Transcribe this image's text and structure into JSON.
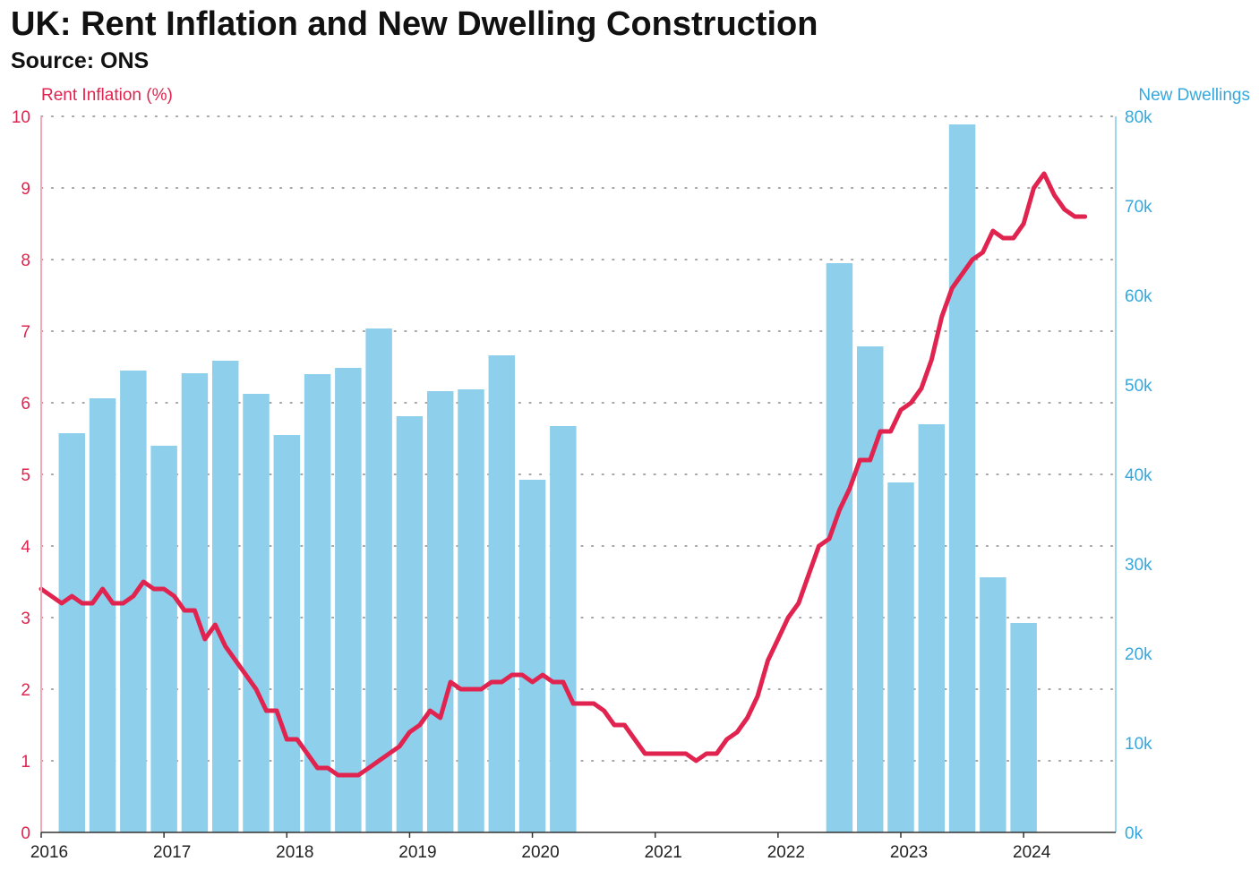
{
  "header": {
    "title": "UK: Rent Inflation and New Dwelling Construction",
    "subtitle": "Source: ONS"
  },
  "colors": {
    "rent": "#e0244f",
    "dwellings": "#36a8dc",
    "bar_fill": "#8ecfeb",
    "grid": "#888888",
    "x_tick": "#222222"
  },
  "chart_data": {
    "type": "bar",
    "title": "UK: Rent Inflation and New Dwelling Construction",
    "subtitle": "Source: ONS",
    "y_left": {
      "label": "Rent Inflation (%)",
      "range": [
        0,
        10
      ],
      "ticks": [
        "0",
        "1",
        "2",
        "3",
        "4",
        "5",
        "6",
        "7",
        "8",
        "9",
        "10"
      ]
    },
    "y_right": {
      "label": "New Dwellings",
      "range": [
        0,
        80000
      ],
      "ticks": [
        "0k",
        "10k",
        "20k",
        "30k",
        "40k",
        "50k",
        "60k",
        "70k",
        "80k"
      ]
    },
    "x_axis": {
      "range": [
        2016,
        2024.75
      ],
      "ticks": [
        "2016",
        "2017",
        "2018",
        "2019",
        "2020",
        "2021",
        "2022",
        "2023",
        "2024"
      ]
    },
    "grid": "horizontal dotted",
    "series": [
      {
        "name": "New Dwellings",
        "type": "bar",
        "axis": "right",
        "x": [
          2016.25,
          2016.5,
          2016.75,
          2017.0,
          2017.25,
          2017.5,
          2017.75,
          2018.0,
          2018.25,
          2018.5,
          2018.75,
          2019.0,
          2019.25,
          2019.5,
          2019.75,
          2020.0,
          2020.25,
          2022.5,
          2022.75,
          2023.0,
          2023.25,
          2023.5,
          2023.75,
          2024.0
        ],
        "values": [
          44600,
          48500,
          51600,
          43200,
          51300,
          52700,
          49000,
          44400,
          51200,
          51900,
          56300,
          46500,
          49300,
          49500,
          53300,
          39400,
          45400,
          63600,
          54300,
          39100,
          45600,
          79100,
          28500,
          23400
        ]
      },
      {
        "name": "Rent Inflation (%)",
        "type": "line",
        "axis": "left",
        "x": [
          2016.0,
          2016.083,
          2016.167,
          2016.25,
          2016.333,
          2016.417,
          2016.5,
          2016.583,
          2016.667,
          2016.75,
          2016.833,
          2016.917,
          2017.0,
          2017.083,
          2017.167,
          2017.25,
          2017.333,
          2017.417,
          2017.5,
          2017.583,
          2017.667,
          2017.75,
          2017.833,
          2017.917,
          2018.0,
          2018.083,
          2018.167,
          2018.25,
          2018.333,
          2018.417,
          2018.5,
          2018.583,
          2018.667,
          2018.75,
          2018.833,
          2018.917,
          2019.0,
          2019.083,
          2019.167,
          2019.25,
          2019.333,
          2019.417,
          2019.5,
          2019.583,
          2019.667,
          2019.75,
          2019.833,
          2019.917,
          2020.0,
          2020.083,
          2020.167,
          2020.25,
          2020.333,
          2020.417,
          2020.5,
          2020.583,
          2020.667,
          2020.75,
          2020.833,
          2020.917,
          2021.0,
          2021.083,
          2021.167,
          2021.25,
          2021.333,
          2021.417,
          2021.5,
          2021.583,
          2021.667,
          2021.75,
          2021.833,
          2021.917,
          2022.0,
          2022.083,
          2022.167,
          2022.25,
          2022.333,
          2022.417,
          2022.5,
          2022.583,
          2022.667,
          2022.75,
          2022.833,
          2022.917,
          2023.0,
          2023.083,
          2023.167,
          2023.25,
          2023.333,
          2023.417,
          2023.5,
          2023.583,
          2023.667,
          2023.75,
          2023.833,
          2023.917,
          2024.0,
          2024.083,
          2024.167,
          2024.25,
          2024.333,
          2024.417,
          2024.5
        ],
        "values": [
          3.4,
          3.3,
          3.2,
          3.3,
          3.2,
          3.2,
          3.4,
          3.2,
          3.2,
          3.3,
          3.5,
          3.4,
          3.4,
          3.3,
          3.1,
          3.1,
          2.7,
          2.9,
          2.6,
          2.4,
          2.2,
          2.0,
          1.7,
          1.7,
          1.3,
          1.3,
          1.1,
          0.9,
          0.9,
          0.8,
          0.8,
          0.8,
          0.9,
          1.0,
          1.1,
          1.2,
          1.4,
          1.5,
          1.7,
          1.6,
          2.1,
          2.0,
          2.0,
          2.0,
          2.1,
          2.1,
          2.2,
          2.2,
          2.1,
          2.2,
          2.1,
          2.1,
          1.8,
          1.8,
          1.8,
          1.7,
          1.5,
          1.5,
          1.3,
          1.1,
          1.1,
          1.1,
          1.1,
          1.1,
          1.0,
          1.1,
          1.1,
          1.3,
          1.4,
          1.6,
          1.9,
          2.4,
          2.7,
          3.0,
          3.2,
          3.6,
          4.0,
          4.1,
          4.5,
          4.8,
          5.2,
          5.2,
          5.6,
          5.6,
          5.9,
          6.0,
          6.2,
          6.6,
          7.2,
          7.6,
          7.8,
          8.0,
          8.1,
          8.4,
          8.3,
          8.3,
          8.5,
          9.0,
          9.2,
          8.9,
          8.7,
          8.6,
          8.6
        ]
      }
    ]
  }
}
